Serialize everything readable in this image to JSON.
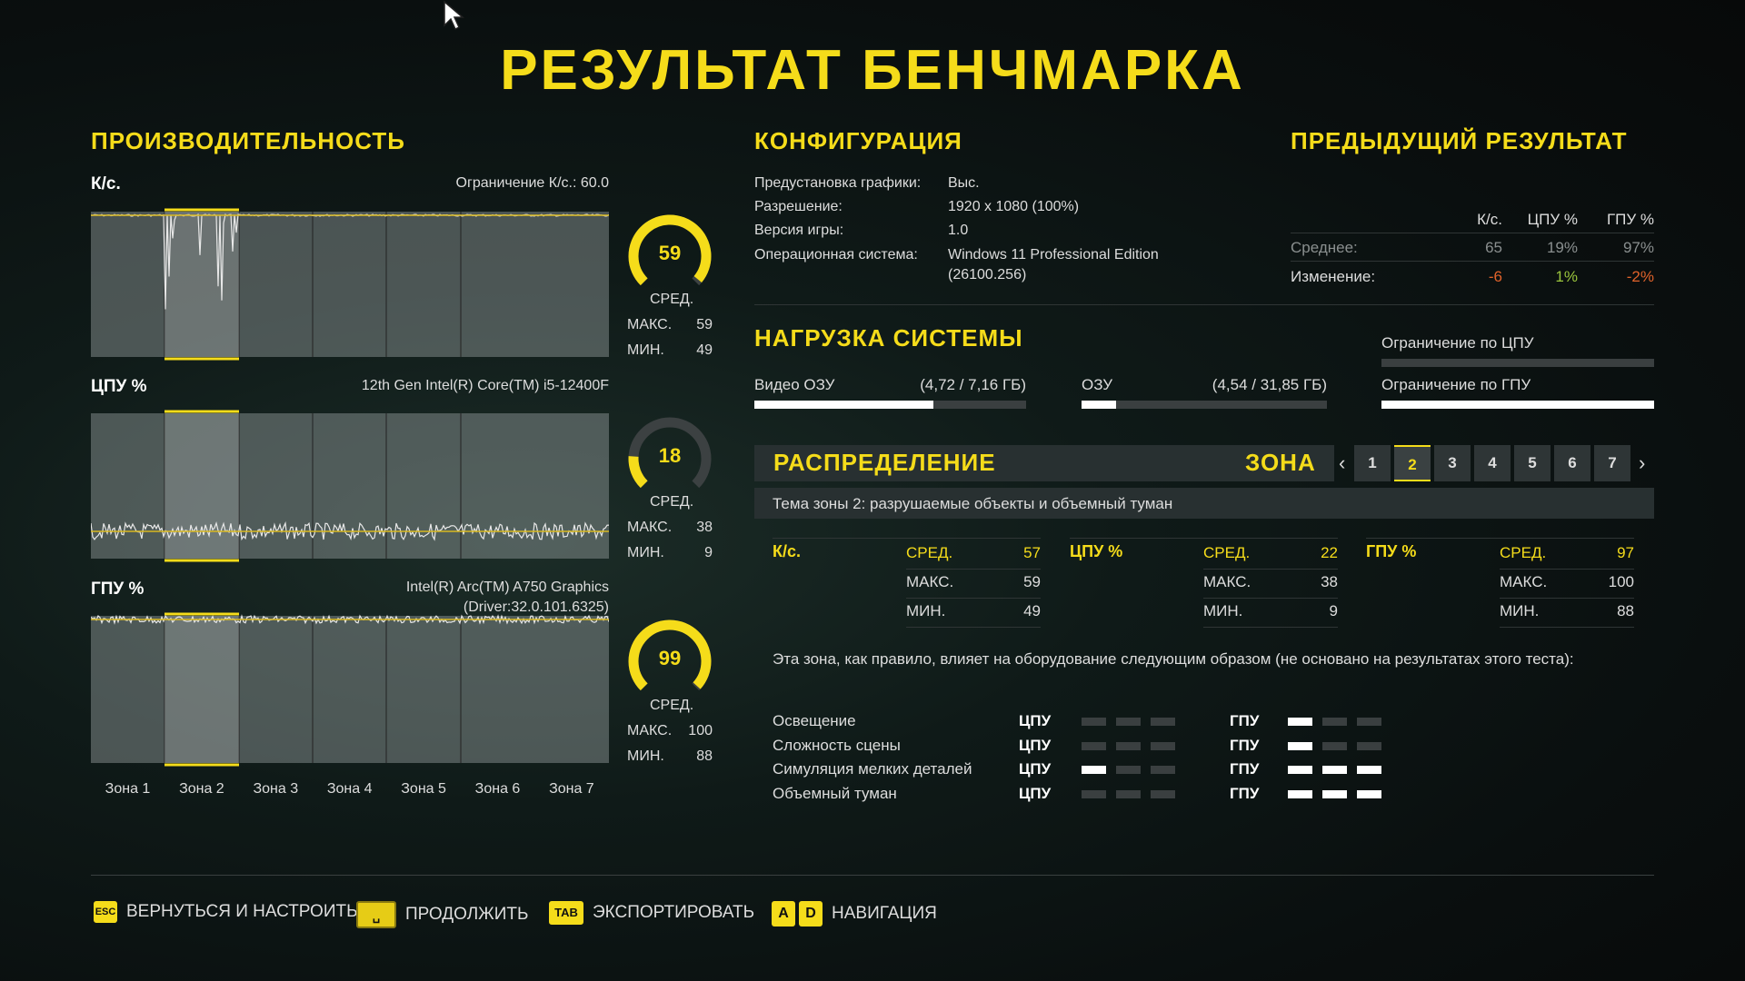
{
  "title": "РЕЗУЛЬТАТ БЕНЧМАРКА",
  "performance": {
    "heading": "ПРОИЗВОДИТЕЛЬНОСТЬ",
    "fps": {
      "label": "К/с.",
      "info": "Ограничение К/с.: 60.0",
      "avg": "59",
      "avg_label": "СРЕД.",
      "max_label": "МАКС.",
      "max": "59",
      "min_label": "МИН.",
      "min": "49",
      "gauge_fraction": 0.98
    },
    "cpu": {
      "label": "ЦПУ %",
      "info": "12th Gen Intel(R) Core(TM) i5-12400F",
      "avg": "18",
      "avg_label": "СРЕД.",
      "max_label": "МАКС.",
      "max": "38",
      "min_label": "МИН.",
      "min": "9",
      "gauge_fraction": 0.18
    },
    "gpu": {
      "label": "ГПУ %",
      "info": "Intel(R) Arc(TM) A750 Graphics",
      "info2": "(Driver:32.0.101.6325)",
      "avg": "99",
      "avg_label": "СРЕД.",
      "max_label": "МАКС.",
      "max": "100",
      "min_label": "МИН.",
      "min": "88",
      "gauge_fraction": 0.99
    },
    "zones": [
      "Зона 1",
      "Зона 2",
      "Зона 3",
      "Зона 4",
      "Зона 5",
      "Зона 6",
      "Зона 7"
    ],
    "selected_zone": 2
  },
  "config": {
    "heading": "КОНФИГУРАЦИЯ",
    "rows": [
      {
        "k": "Предустановка графики:",
        "v": "Выс."
      },
      {
        "k": "Разрешение:",
        "v": "1920 x 1080 (100%)"
      },
      {
        "k": "Версия игры:",
        "v": "1.0"
      },
      {
        "k": "Операционная система:",
        "v": "Windows 11 Professional Edition",
        "v2": "(26100.256)"
      }
    ]
  },
  "previous": {
    "heading": "ПРЕДЫДУЩИЙ РЕЗУЛЬТАТ",
    "cols": [
      "К/с.",
      "ЦПУ %",
      "ГПУ %"
    ],
    "avg": {
      "label": "Среднее:",
      "values": [
        "65",
        "19%",
        "97%"
      ]
    },
    "change": {
      "label": "Изменение:",
      "values": [
        "-6",
        "1%",
        "-2%"
      ]
    },
    "colors": {
      "negative": "#e0622a",
      "positive": "#9bc53d"
    }
  },
  "load": {
    "heading": "НАГРУЗКА СИСТЕМЫ",
    "vram": {
      "label": "Видео ОЗУ",
      "value": "(4,72 / 7,16 ГБ)",
      "fraction": 0.66
    },
    "ram": {
      "label": "ОЗУ",
      "value": "(4,54 / 31,85 ГБ)",
      "fraction": 0.14
    },
    "cpu_limit": {
      "label": "Ограничение по ЦПУ",
      "fraction": 0
    },
    "gpu_limit": {
      "label": "Ограничение по ГПУ",
      "fraction": 1
    }
  },
  "distribution": {
    "heading": "РАСПРЕДЕЛЕНИЕ",
    "zone_label": "ЗОНА",
    "pages": [
      "1",
      "2",
      "3",
      "4",
      "5",
      "6",
      "7"
    ],
    "active": "2",
    "theme": "Тема зоны 2: разрушаемые объекты и объемный туман",
    "stats": [
      {
        "name": "К/с.",
        "avg_l": "СРЕД.",
        "avg": "57",
        "max_l": "МАКС.",
        "max": "59",
        "min_l": "МИН.",
        "min": "49"
      },
      {
        "name": "ЦПУ %",
        "avg_l": "СРЕД.",
        "avg": "22",
        "max_l": "МАКС.",
        "max": "38",
        "min_l": "МИН.",
        "min": "9"
      },
      {
        "name": "ГПУ %",
        "avg_l": "СРЕД.",
        "avg": "97",
        "max_l": "МАКС.",
        "max": "100",
        "min_l": "МИН.",
        "min": "88"
      }
    ],
    "description": "Эта зона, как правило, влияет на оборудование следующим образом (не основано на результатах этого теста):",
    "cpu_label": "ЦПУ",
    "gpu_label": "ГПУ",
    "impact": [
      {
        "name": "Освещение",
        "cpu": 0,
        "gpu": 1
      },
      {
        "name": "Сложность сцены",
        "cpu": 0,
        "gpu": 1
      },
      {
        "name": "Симуляция мелких деталей",
        "cpu": 1,
        "gpu": 3
      },
      {
        "name": "Объемный туман",
        "cpu": 0,
        "gpu": 3
      }
    ]
  },
  "footer": [
    {
      "key": "ESC",
      "label": "ВЕРНУТЬСЯ И НАСТРОИТЬ"
    },
    {
      "key": "␣",
      "label": "ПРОДОЛЖИТЬ"
    },
    {
      "key": "TAB",
      "label": "ЭКСПОРТИРОВАТЬ"
    },
    {
      "keys": [
        "A",
        "D"
      ],
      "label": "НАВИГАЦИЯ"
    }
  ],
  "accent": "#f5dc1a"
}
